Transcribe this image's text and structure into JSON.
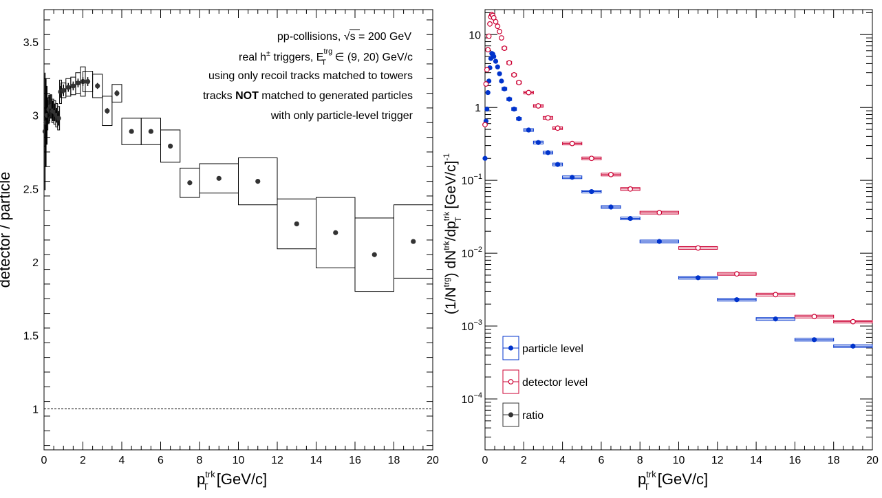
{
  "left_panel": {
    "ylabel": "detector / particle",
    "xlabel_main": "p",
    "xlabel_sup": "trk",
    "xlabel_sub": "T",
    "xlabel_unit": " [GeV/c]",
    "x_ticks": [
      "0",
      "2",
      "4",
      "6",
      "8",
      "10",
      "12",
      "14",
      "16",
      "18",
      "20"
    ],
    "y_ticks": [
      "1",
      "1.5",
      "2",
      "2.5",
      "3",
      "3.5"
    ],
    "annotations": {
      "line1_a": "pp-collisions, ",
      "line1_sqrt": "√s",
      "line1_b": " = 200 GeV",
      "line2_a": "real h",
      "line2_pm": "±",
      "line2_b": " triggers, E",
      "line2_sup": "trg",
      "line2_sub": "T",
      "line2_c": " ∈ (9, 20) GeV/c",
      "line3": "using only recoil tracks matched to towers",
      "line4_a": "tracks ",
      "line4_bold": "NOT",
      "line4_b": " matched to generated particles",
      "line5": "with only particle-level trigger"
    }
  },
  "right_panel": {
    "ylabel": "(1/N^trg) dN^trk/dp_T^trk [GeV/c]^-1",
    "xlabel_main": "p",
    "xlabel_sup": "trk",
    "xlabel_sub": "T",
    "xlabel_unit": " [GeV/c]",
    "x_ticks": [
      "0",
      "2",
      "4",
      "6",
      "8",
      "10",
      "12",
      "14",
      "16",
      "18",
      "20"
    ],
    "legend": [
      {
        "label": "particle level",
        "color": "#0033cc",
        "marker": "filled-circle"
      },
      {
        "label": "detector level",
        "color": "#cc0033",
        "marker": "open-circle"
      },
      {
        "label": "ratio",
        "color": "#333333",
        "marker": "filled-circle"
      }
    ]
  },
  "chart_data": [
    {
      "type": "scatter",
      "xlabel": "p_T^trk [GeV/c]",
      "ylabel": "detector / particle",
      "xlim": [
        0,
        20
      ],
      "ylim": [
        0.72,
        3.72
      ],
      "reference_line": 1,
      "series": [
        {
          "name": "ratio",
          "color": "#333333",
          "x": [
            0.05,
            0.1,
            0.15,
            0.25,
            0.35,
            0.45,
            0.55,
            0.65,
            0.75,
            0.85,
            1.0,
            1.25,
            1.5,
            1.75,
            2.0,
            2.25,
            2.75,
            3.25,
            3.75,
            4.5,
            5.5,
            6.5,
            7.5,
            9.0,
            11.0,
            13.0,
            15.0,
            17.0,
            19.0
          ],
          "y": [
            2.89,
            2.95,
            3.0,
            3.04,
            3.06,
            3.03,
            3.02,
            3.0,
            2.98,
            3.16,
            3.17,
            3.19,
            3.2,
            3.22,
            3.23,
            3.23,
            3.2,
            3.03,
            3.15,
            2.89,
            2.89,
            2.79,
            2.54,
            2.57,
            2.55,
            2.26,
            2.2,
            2.05,
            2.14
          ],
          "stat": [
            0.4,
            0.3,
            0.2,
            0.1,
            0.08,
            0.07,
            0.06,
            0.05,
            0.05,
            0.04,
            0.04,
            0.03,
            0.03,
            0.03,
            0.03,
            0.03,
            0.02,
            0.02,
            0.02,
            0.01,
            0.01,
            0.01,
            0.01,
            0.01,
            0.01,
            0.01,
            0.01,
            0.01,
            0.01
          ],
          "sys_half_width": [
            0.05,
            0.05,
            0.05,
            0.05,
            0.05,
            0.05,
            0.05,
            0.05,
            0.05,
            0.05,
            0.125,
            0.125,
            0.125,
            0.125,
            0.125,
            0.25,
            0.25,
            0.25,
            0.25,
            0.5,
            0.5,
            0.5,
            0.5,
            1.0,
            1.0,
            1.0,
            1.0,
            1.0,
            1.0
          ],
          "sys": [
            0.1,
            0.1,
            0.1,
            0.08,
            0.08,
            0.08,
            0.08,
            0.08,
            0.08,
            0.08,
            0.05,
            0.06,
            0.06,
            0.07,
            0.1,
            0.07,
            0.08,
            0.1,
            0.06,
            0.09,
            0.09,
            0.11,
            0.1,
            0.1,
            0.16,
            0.17,
            0.24,
            0.25,
            0.25
          ]
        }
      ]
    },
    {
      "type": "scatter",
      "xlabel": "p_T^trk [GeV/c]",
      "ylabel": "(1/N^trg) dN^trk/dp_T^trk [GeV/c]^-1",
      "xlim": [
        0,
        20
      ],
      "ylim": [
        2e-05,
        22
      ],
      "yscale": "log",
      "legend_position": "bottom-left",
      "series": [
        {
          "name": "particle level",
          "color": "#0033cc",
          "x": [
            0.0,
            0.05,
            0.1,
            0.15,
            0.2,
            0.25,
            0.3,
            0.35,
            0.4,
            0.45,
            0.55,
            0.65,
            0.75,
            0.85,
            1.0,
            1.25,
            1.5,
            1.75,
            2.25,
            2.75,
            3.25,
            3.75,
            4.5,
            5.5,
            6.5,
            7.5,
            9.0,
            11.0,
            13.0,
            15.0,
            17.0,
            19.0
          ],
          "y": [
            0.2,
            0.65,
            0.95,
            1.6,
            2.3,
            3.5,
            4.7,
            5.5,
            5.4,
            5.0,
            4.3,
            3.6,
            2.9,
            2.3,
            1.8,
            1.3,
            0.95,
            0.7,
            0.49,
            0.33,
            0.24,
            0.165,
            0.11,
            0.07,
            0.043,
            0.03,
            0.0145,
            0.0046,
            0.0023,
            0.00125,
            0.00065,
            0.00053
          ],
          "half_width": [
            0.025,
            0.025,
            0.025,
            0.025,
            0.025,
            0.025,
            0.025,
            0.025,
            0.025,
            0.025,
            0.05,
            0.05,
            0.05,
            0.05,
            0.125,
            0.125,
            0.125,
            0.125,
            0.25,
            0.25,
            0.25,
            0.25,
            0.5,
            0.5,
            0.5,
            0.5,
            1.0,
            1.0,
            1.0,
            1.0,
            1.0,
            1.0
          ]
        },
        {
          "name": "detector level",
          "color": "#cc0033",
          "x": [
            0.0,
            0.05,
            0.1,
            0.15,
            0.2,
            0.25,
            0.3,
            0.35,
            0.4,
            0.45,
            0.55,
            0.65,
            0.75,
            0.85,
            1.0,
            1.25,
            1.5,
            1.75,
            2.25,
            2.75,
            3.25,
            3.75,
            4.5,
            5.5,
            6.5,
            7.5,
            9.0,
            11.0,
            13.0,
            15.0,
            17.0,
            19.0
          ],
          "y": [
            0.58,
            2.1,
            3.3,
            6.2,
            9.5,
            14.0,
            17.5,
            18.8,
            18.3,
            17.0,
            15.0,
            13.0,
            11.0,
            9.0,
            6.5,
            4.1,
            2.8,
            2.2,
            1.6,
            1.05,
            0.72,
            0.52,
            0.32,
            0.2,
            0.12,
            0.076,
            0.036,
            0.0118,
            0.0052,
            0.0027,
            0.00135,
            0.00115
          ],
          "half_width": [
            0.025,
            0.025,
            0.025,
            0.025,
            0.025,
            0.025,
            0.025,
            0.025,
            0.025,
            0.025,
            0.05,
            0.05,
            0.05,
            0.05,
            0.125,
            0.125,
            0.125,
            0.125,
            0.25,
            0.25,
            0.25,
            0.25,
            0.5,
            0.5,
            0.5,
            0.5,
            1.0,
            1.0,
            1.0,
            1.0,
            1.0,
            1.0
          ]
        }
      ]
    }
  ]
}
